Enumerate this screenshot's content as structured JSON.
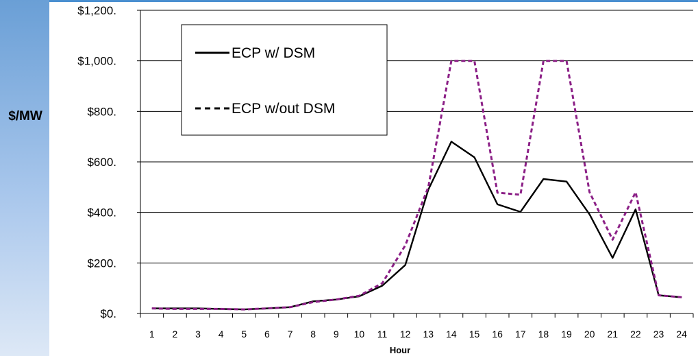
{
  "chart_data": {
    "type": "line",
    "title": "",
    "xlabel": "Hour",
    "ylabel": "$/MW",
    "ylim": [
      0,
      1200
    ],
    "yticks": [
      {
        "value": 0,
        "label": "$0."
      },
      {
        "value": 200,
        "label": "$200."
      },
      {
        "value": 400,
        "label": "$400."
      },
      {
        "value": 600,
        "label": "$600."
      },
      {
        "value": 800,
        "label": "$800."
      },
      {
        "value": 1000,
        "label": "$1,000."
      },
      {
        "value": 1200,
        "label": "$1,200."
      }
    ],
    "x": [
      "1",
      "2",
      "3",
      "4",
      "5",
      "6",
      "7",
      "8",
      "9",
      "10",
      "11",
      "12",
      "13",
      "14",
      "15",
      "16",
      "17",
      "18",
      "19",
      "20",
      "21",
      "22",
      "23",
      "24"
    ],
    "grid": "horizontal",
    "legend": "top-left",
    "series": [
      {
        "name": "ECP w/ DSM",
        "style": "solid",
        "color": "#000000",
        "values": [
          20,
          20,
          20,
          18,
          16,
          20,
          25,
          48,
          55,
          68,
          110,
          192,
          490,
          680,
          618,
          432,
          402,
          532,
          522,
          392,
          220,
          412,
          72,
          64
        ]
      },
      {
        "name": "ECP w/out DSM",
        "style": "dashed",
        "color": "#8b1f86",
        "values": [
          20,
          18,
          18,
          18,
          16,
          20,
          25,
          45,
          55,
          70,
          120,
          270,
          500,
          1000,
          1000,
          478,
          470,
          1000,
          1000,
          480,
          292,
          480,
          72,
          64
        ]
      }
    ]
  }
}
